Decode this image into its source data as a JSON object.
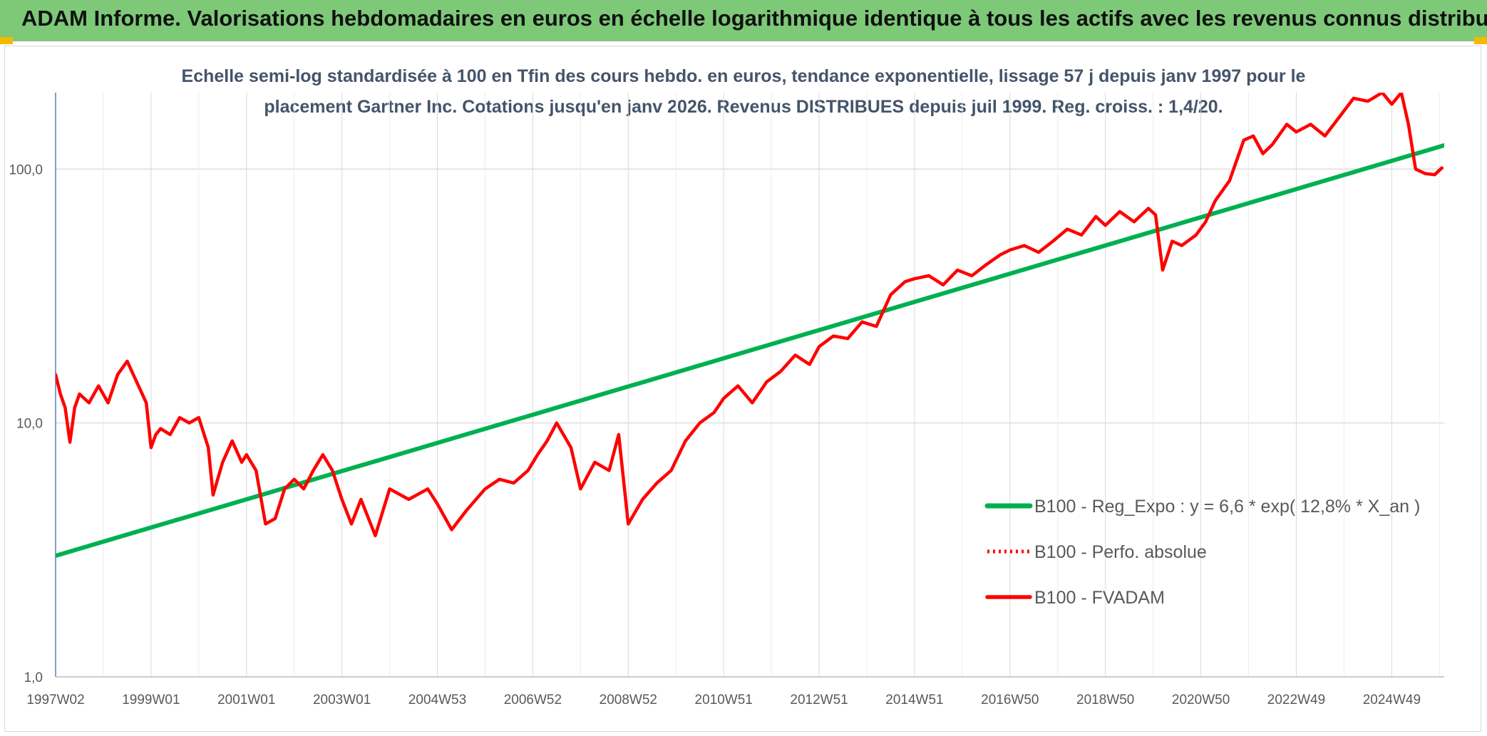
{
  "header": {
    "title": "ADAM Informe. Valorisations hebdomadaires en euros en échelle logarithmique identique à tous les actifs avec les revenus connus distribués"
  },
  "colors": {
    "header_bg": "#7dc978",
    "corner_accent": "#f5b800",
    "regression": "#00b050",
    "fvadam": "#ff0000",
    "grid": "#d9d9d9",
    "title": "#44546a",
    "axis_text": "#595959"
  },
  "chart_data": {
    "type": "line",
    "title_line1": "Echelle semi-log standardisée à 100 en Tfin des cours hebdo. en euros, tendance exponentielle, lissage 57 j depuis janv 1997 pour le",
    "title_line2": "placement Gartner Inc. Cotations jusqu'en janv 2026. Revenus DISTRIBUES depuis juil 1999. Reg. croiss. : 1,4/20.",
    "y_scale": "log",
    "ylim": [
      1,
      200
    ],
    "xlim": [
      1997.0,
      2026.1
    ],
    "y_ticks": [
      {
        "value": 1,
        "label": "1,0"
      },
      {
        "value": 10,
        "label": "10,0"
      },
      {
        "value": 100,
        "label": "100,0"
      }
    ],
    "x_ticks": [
      {
        "value": 1997.0,
        "label": "1997W02"
      },
      {
        "value": 1999.0,
        "label": "1999W01"
      },
      {
        "value": 2001.0,
        "label": "2001W01"
      },
      {
        "value": 2003.0,
        "label": "2003W01"
      },
      {
        "value": 2005.0,
        "label": "2004W53"
      },
      {
        "value": 2007.0,
        "label": "2006W52"
      },
      {
        "value": 2009.0,
        "label": "2008W52"
      },
      {
        "value": 2011.0,
        "label": "2010W51"
      },
      {
        "value": 2013.0,
        "label": "2012W51"
      },
      {
        "value": 2015.0,
        "label": "2014W51"
      },
      {
        "value": 2017.0,
        "label": "2016W50"
      },
      {
        "value": 2019.0,
        "label": "2018W50"
      },
      {
        "value": 2021.0,
        "label": "2020W50"
      },
      {
        "value": 2023.0,
        "label": "2022W49"
      },
      {
        "value": 2025.0,
        "label": "2024W49"
      }
    ],
    "grid": true,
    "legend_position": "bottom-right",
    "series": [
      {
        "name": "B100 - Reg_Expo : y = 6,6 * exp( 12,8% * X_an )",
        "style": "solid-green",
        "x": [
          1997.0,
          2026.1
        ],
        "y": [
          3.0,
          124
        ]
      },
      {
        "name": "B100 - Perfo. absolue",
        "style": "dotted-red",
        "x": [],
        "y": []
      },
      {
        "name": "B100 - FVADAM",
        "style": "solid-red",
        "x": [
          1997.0,
          1997.1,
          1997.2,
          1997.3,
          1997.4,
          1997.5,
          1997.7,
          1997.9,
          1998.1,
          1998.3,
          1998.5,
          1998.7,
          1998.9,
          1999.0,
          1999.1,
          1999.2,
          1999.4,
          1999.6,
          1999.8,
          2000.0,
          2000.2,
          2000.3,
          2000.5,
          2000.7,
          2000.9,
          2001.0,
          2001.2,
          2001.4,
          2001.6,
          2001.8,
          2002.0,
          2002.2,
          2002.4,
          2002.6,
          2002.8,
          2003.0,
          2003.2,
          2003.4,
          2003.7,
          2004.0,
          2004.4,
          2004.8,
          2005.0,
          2005.3,
          2005.6,
          2006.0,
          2006.3,
          2006.6,
          2006.9,
          2007.1,
          2007.3,
          2007.5,
          2007.8,
          2008.0,
          2008.3,
          2008.6,
          2008.8,
          2009.0,
          2009.3,
          2009.6,
          2009.9,
          2010.2,
          2010.5,
          2010.8,
          2011.0,
          2011.3,
          2011.6,
          2011.9,
          2012.2,
          2012.5,
          2012.8,
          2013.0,
          2013.3,
          2013.6,
          2013.9,
          2014.2,
          2014.5,
          2014.8,
          2015.0,
          2015.3,
          2015.6,
          2015.9,
          2016.2,
          2016.5,
          2016.8,
          2017.0,
          2017.3,
          2017.6,
          2017.9,
          2018.2,
          2018.5,
          2018.8,
          2019.0,
          2019.3,
          2019.6,
          2019.9,
          2020.05,
          2020.2,
          2020.4,
          2020.6,
          2020.9,
          2021.1,
          2021.3,
          2021.6,
          2021.9,
          2022.1,
          2022.3,
          2022.5,
          2022.8,
          2023.0,
          2023.3,
          2023.6,
          2023.9,
          2024.2,
          2024.5,
          2024.8,
          2025.0,
          2025.2,
          2025.35,
          2025.5,
          2025.7,
          2025.9,
          2026.05
        ],
        "y": [
          15.5,
          13.0,
          11.5,
          8.4,
          11.5,
          13.0,
          12.0,
          14.0,
          12.0,
          15.5,
          17.5,
          14.5,
          12.0,
          8.0,
          9.0,
          9.5,
          9.0,
          10.5,
          10.0,
          10.5,
          8.0,
          5.2,
          7.0,
          8.5,
          7.0,
          7.5,
          6.5,
          4.0,
          4.2,
          5.5,
          6.0,
          5.5,
          6.5,
          7.5,
          6.5,
          5.0,
          4.0,
          5.0,
          3.6,
          5.5,
          5.0,
          5.5,
          4.8,
          3.8,
          4.5,
          5.5,
          6.0,
          5.8,
          6.5,
          7.5,
          8.5,
          10.0,
          8.0,
          5.5,
          7.0,
          6.5,
          9.0,
          4.0,
          5.0,
          5.8,
          6.5,
          8.5,
          10.0,
          11.0,
          12.5,
          14.0,
          12.0,
          14.5,
          16.0,
          18.5,
          17.0,
          20.0,
          22.0,
          21.5,
          25.0,
          24.0,
          32.0,
          36.0,
          37.0,
          38.0,
          35.0,
          40.0,
          38.0,
          42.0,
          46.0,
          48.0,
          50.0,
          47.0,
          52.0,
          58.0,
          55.0,
          65.0,
          60.0,
          68.0,
          62.0,
          70.0,
          66.0,
          40.0,
          52.0,
          50.0,
          55.0,
          62.0,
          75.0,
          90.0,
          130.0,
          135.0,
          115.0,
          125.0,
          150.0,
          140.0,
          150.0,
          135.0,
          160.0,
          190.0,
          185.0,
          200.0,
          180.0,
          200.0,
          150.0,
          100.0,
          96.0,
          95.0,
          101.0
        ]
      }
    ]
  }
}
